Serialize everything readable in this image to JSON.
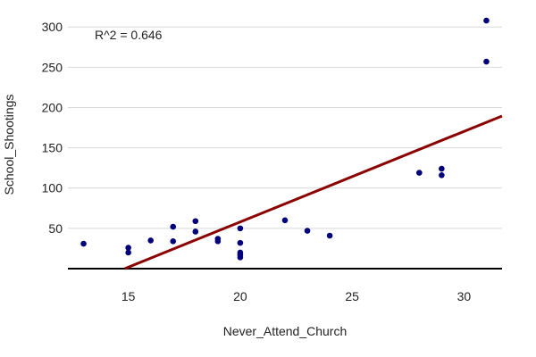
{
  "chart_data": {
    "type": "scatter",
    "title": "",
    "xlabel": "Never_Attend_Church",
    "ylabel": "School_Shootings",
    "xlim": [
      12.3,
      31.7
    ],
    "ylim": [
      0,
      318
    ],
    "xticks": [
      15,
      20,
      25,
      30
    ],
    "yticks": [
      50,
      100,
      150,
      200,
      250,
      300
    ],
    "grid": "horizontal",
    "legend": "none",
    "annotation": "R^2 =  0.646",
    "series": [
      {
        "points": [
          [
            13,
            31
          ],
          [
            15,
            26
          ],
          [
            15,
            20
          ],
          [
            16,
            35
          ],
          [
            17,
            52
          ],
          [
            17,
            34
          ],
          [
            18,
            59
          ],
          [
            18,
            46
          ],
          [
            19,
            37
          ],
          [
            19,
            34
          ],
          [
            20,
            50
          ],
          [
            20,
            32
          ],
          [
            20,
            20
          ],
          [
            20,
            17
          ],
          [
            20,
            14
          ],
          [
            22,
            60
          ],
          [
            23,
            47
          ],
          [
            24,
            41
          ],
          [
            28,
            119
          ],
          [
            29,
            124
          ],
          [
            29,
            116
          ],
          [
            31,
            308
          ],
          [
            31,
            257
          ]
        ]
      }
    ],
    "trendline": {
      "slope": 11.24,
      "intercept": -166.8
    },
    "colors": {
      "points": "#00007a",
      "trendline": "#8b0000",
      "baseline": "#000000",
      "grid": "#d9d9d9"
    }
  }
}
